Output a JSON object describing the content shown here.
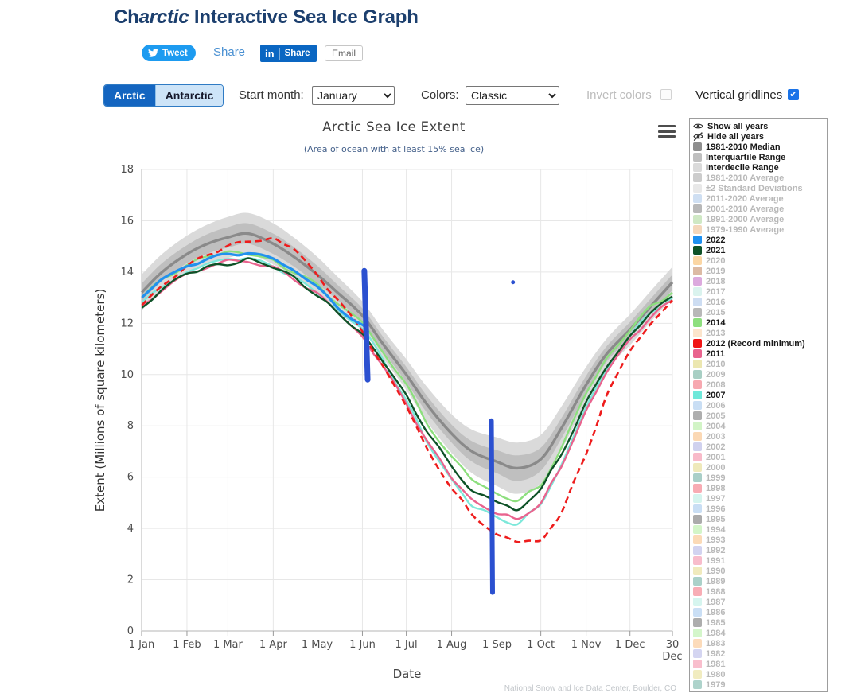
{
  "header": {
    "title_prefix": "Ch",
    "title_italic": "arctic",
    "title_rest": " Interactive Sea Ice Graph"
  },
  "social": {
    "tweet_label": "Tweet",
    "share_label": "Share",
    "linkedin_icon": "in",
    "linkedin_label": "Share",
    "email_label": "Email"
  },
  "controls": {
    "arctic_tab": "Arctic",
    "antarctic_tab": "Antarctic",
    "start_month_label": "Start month:",
    "start_month_value": "January",
    "colors_label": "Colors:",
    "colors_value": "Classic",
    "invert_colors_label": "Invert colors",
    "invert_colors_checked": false,
    "invert_colors_enabled": false,
    "vertical_gridlines_label": "Vertical gridlines",
    "vertical_gridlines_checked": true,
    "checkbox_check_glyph": "✔"
  },
  "legend": {
    "show_all_label": "Show all years",
    "hide_all_label": "Hide all years",
    "items": [
      {
        "label": "1981-2010 Median",
        "color": "#8e8e8e",
        "active": true
      },
      {
        "label": "Interquartile Range",
        "color": "#bfbfbf",
        "active": true
      },
      {
        "label": "Interdecile Range",
        "color": "#dadada",
        "active": true
      },
      {
        "label": "1981-2010 Average",
        "color": "#cccccc",
        "active": false
      },
      {
        "label": "±2 Standard Deviations",
        "color": "#e8e8e8",
        "active": false
      },
      {
        "label": "2011-2020 Average",
        "color": "#cfdff2",
        "active": false
      },
      {
        "label": "2001-2010 Average",
        "color": "#b8b8b8",
        "active": false
      },
      {
        "label": "1991-2000 Average",
        "color": "#cfe8c4",
        "active": false
      },
      {
        "label": "1979-1990 Average",
        "color": "#f4d7bb",
        "active": false
      },
      {
        "label": "2022",
        "color": "#1e90f0",
        "active": true
      },
      {
        "label": "2021",
        "color": "#0e5227",
        "active": true
      },
      {
        "label": "2020",
        "color": "#fbd6a4",
        "active": false
      },
      {
        "label": "2019",
        "color": "#dcbaa4",
        "active": false
      },
      {
        "label": "2018",
        "color": "#dcaade",
        "active": false
      },
      {
        "label": "2017",
        "color": "#daf3ee",
        "active": false
      },
      {
        "label": "2016",
        "color": "#cdddf2",
        "active": false
      },
      {
        "label": "2015",
        "color": "#b8b8b8",
        "active": false
      },
      {
        "label": "2014",
        "color": "#8ddf7e",
        "active": true
      },
      {
        "label": "2013",
        "color": "#fce5cc",
        "active": false
      },
      {
        "label": "2012 (Record minimum)",
        "color": "#f01414",
        "active": true
      },
      {
        "label": "2011",
        "color": "#e9638e",
        "active": true
      },
      {
        "label": "2010",
        "color": "#ece7b0",
        "active": false
      },
      {
        "label": "2009",
        "color": "#a8cfc4",
        "active": false
      },
      {
        "label": "2008",
        "color": "#f7a8b0",
        "active": false
      },
      {
        "label": "2007",
        "color": "#6fe8da",
        "active": true
      },
      {
        "label": "2006",
        "color": "#c9def4",
        "active": false
      },
      {
        "label": "2005",
        "color": "#aeaeae",
        "active": false
      },
      {
        "label": "2004",
        "color": "#d2f4c6",
        "active": false
      },
      {
        "label": "2003",
        "color": "#fbd8b4",
        "active": false
      },
      {
        "label": "2002",
        "color": "#d0d1ee",
        "active": false
      },
      {
        "label": "2001",
        "color": "#f8bac9",
        "active": false
      },
      {
        "label": "2000",
        "color": "#efe9ba",
        "active": false
      },
      {
        "label": "1999",
        "color": "#aacfc8",
        "active": false
      },
      {
        "label": "1998",
        "color": "#f8abb3",
        "active": false
      },
      {
        "label": "1997",
        "color": "#d5f4ee",
        "active": false
      },
      {
        "label": "1996",
        "color": "#c9def4",
        "active": false
      },
      {
        "label": "1995",
        "color": "#ababab",
        "active": false
      },
      {
        "label": "1994",
        "color": "#d3f5c8",
        "active": false
      },
      {
        "label": "1993",
        "color": "#fbdab7",
        "active": false
      },
      {
        "label": "1992",
        "color": "#d2d3f0",
        "active": false
      },
      {
        "label": "1991",
        "color": "#f8bccb",
        "active": false
      },
      {
        "label": "1990",
        "color": "#f0eabd",
        "active": false
      },
      {
        "label": "1989",
        "color": "#abd1c9",
        "active": false
      },
      {
        "label": "1988",
        "color": "#f8adb5",
        "active": false
      },
      {
        "label": "1987",
        "color": "#d6f5ef",
        "active": false
      },
      {
        "label": "1986",
        "color": "#cadff5",
        "active": false
      },
      {
        "label": "1985",
        "color": "#adadad",
        "active": false
      },
      {
        "label": "1984",
        "color": "#d4f6ca",
        "active": false
      },
      {
        "label": "1983",
        "color": "#fcdbba",
        "active": false
      },
      {
        "label": "1982",
        "color": "#d4d5f1",
        "active": false
      },
      {
        "label": "1981",
        "color": "#f9becd",
        "active": false
      },
      {
        "label": "1980",
        "color": "#f1ecc0",
        "active": false
      },
      {
        "label": "1979",
        "color": "#aed3cb",
        "active": false
      }
    ]
  },
  "chart_data": {
    "type": "line",
    "title": "Arctic Sea Ice Extent",
    "subtitle": "(Area of ocean with at least 15% sea ice)",
    "xlabel": "Date",
    "ylabel": "Extent (Millions of square kilometers)",
    "credit": "National Snow and Ice Data Center, Boulder, CO",
    "ylim": [
      0,
      18
    ],
    "yticks": [
      0,
      2,
      4,
      6,
      8,
      10,
      12,
      14,
      16,
      18
    ],
    "xticks": [
      {
        "day": 1,
        "label": "1 Jan"
      },
      {
        "day": 32,
        "label": "1 Feb"
      },
      {
        "day": 60,
        "label": "1 Mar"
      },
      {
        "day": 91,
        "label": "1 Apr"
      },
      {
        "day": 121,
        "label": "1 May"
      },
      {
        "day": 152,
        "label": "1 Jun"
      },
      {
        "day": 182,
        "label": "1 Jul"
      },
      {
        "day": 213,
        "label": "1 Aug"
      },
      {
        "day": 244,
        "label": "1 Sep"
      },
      {
        "day": 274,
        "label": "1 Oct"
      },
      {
        "day": 305,
        "label": "1 Nov"
      },
      {
        "day": 335,
        "label": "1 Dec"
      },
      {
        "day": 364,
        "label": "30 Dec"
      }
    ],
    "grid": {
      "vertical": true,
      "horizontal": true
    },
    "sample_days": [
      1,
      15,
      32,
      46,
      60,
      74,
      91,
      105,
      121,
      135,
      152,
      166,
      182,
      196,
      213,
      227,
      244,
      258,
      274,
      288,
      305,
      319,
      335,
      349,
      364
    ],
    "median": {
      "name": "1981-2010 Median",
      "color": "#8a8a8a",
      "width": 3.4,
      "values": [
        13.2,
        14.0,
        14.7,
        15.1,
        15.35,
        15.5,
        15.1,
        14.6,
        13.9,
        13.2,
        12.3,
        11.2,
        10.0,
        8.85,
        7.7,
        7.0,
        6.6,
        6.35,
        6.7,
        7.9,
        9.6,
        10.8,
        11.75,
        12.65,
        13.6
      ]
    },
    "bands": {
      "interdecile": {
        "name": "Interdecile Range",
        "color": "#dadada",
        "half_width": [
          0.7,
          0.7,
          0.72,
          0.75,
          0.8,
          0.8,
          0.8,
          0.75,
          0.7,
          0.62,
          0.55,
          0.55,
          0.6,
          0.68,
          0.75,
          0.85,
          0.95,
          1.0,
          0.95,
          0.85,
          0.7,
          0.6,
          0.6,
          0.6,
          0.6
        ]
      },
      "interquartile": {
        "name": "Interquartile Range",
        "color": "#bfbfbf",
        "half_width": [
          0.35,
          0.35,
          0.35,
          0.38,
          0.4,
          0.4,
          0.4,
          0.38,
          0.35,
          0.3,
          0.28,
          0.28,
          0.3,
          0.33,
          0.35,
          0.4,
          0.45,
          0.5,
          0.45,
          0.4,
          0.35,
          0.3,
          0.3,
          0.3,
          0.3
        ]
      }
    },
    "series": [
      {
        "name": "2007",
        "color": "#7de8da",
        "width": 2.4,
        "dash": null,
        "values": [
          12.8,
          13.4,
          14.0,
          14.3,
          14.55,
          14.5,
          14.25,
          13.8,
          13.2,
          12.5,
          11.8,
          10.6,
          9.0,
          7.4,
          5.9,
          4.9,
          4.4,
          4.2,
          4.9,
          6.5,
          8.7,
          10.2,
          11.5,
          12.4,
          13.0
        ]
      },
      {
        "name": "2011",
        "color": "#e9638e",
        "width": 2.4,
        "dash": null,
        "values": [
          12.7,
          13.3,
          13.9,
          14.2,
          14.45,
          14.4,
          14.2,
          13.7,
          13.2,
          12.4,
          11.5,
          10.3,
          8.9,
          7.4,
          6.0,
          5.1,
          4.6,
          4.35,
          5.0,
          6.4,
          8.6,
          10.1,
          11.35,
          12.25,
          12.9
        ]
      },
      {
        "name": "2014",
        "color": "#8ddf7e",
        "width": 2.4,
        "dash": null,
        "values": [
          13.0,
          13.7,
          14.3,
          14.6,
          14.8,
          14.7,
          14.45,
          14.0,
          13.5,
          12.8,
          12.0,
          10.9,
          9.6,
          8.1,
          6.8,
          5.9,
          5.35,
          5.05,
          5.7,
          7.1,
          9.3,
          10.6,
          11.75,
          12.65,
          13.2
        ]
      },
      {
        "name": "2021",
        "color": "#0e5227",
        "width": 2.4,
        "dash": null,
        "values": [
          12.6,
          13.3,
          13.95,
          14.2,
          14.3,
          14.5,
          14.2,
          13.8,
          13.1,
          12.4,
          11.6,
          10.5,
          9.2,
          7.8,
          6.4,
          5.5,
          5.0,
          4.75,
          5.5,
          6.9,
          8.9,
          10.3,
          11.5,
          12.4,
          13.05
        ]
      },
      {
        "name": "2012 (Record minimum)",
        "color": "#ee1c1c",
        "width": 2.6,
        "dash": "8,5",
        "values": [
          12.7,
          13.5,
          14.2,
          14.7,
          15.0,
          15.2,
          15.3,
          14.9,
          13.9,
          12.9,
          11.7,
          10.3,
          8.8,
          7.1,
          5.6,
          4.5,
          3.8,
          3.45,
          3.55,
          4.6,
          6.9,
          9.2,
          10.9,
          12.0,
          12.9
        ]
      },
      {
        "name": "2022",
        "color": "#2191ee",
        "width": 3.2,
        "dash": null,
        "days": [
          1,
          15,
          32,
          46,
          60,
          74,
          91,
          105,
          121,
          135,
          152,
          156
        ],
        "values": [
          13.0,
          13.7,
          14.25,
          14.5,
          14.7,
          14.75,
          14.5,
          14.1,
          13.4,
          12.65,
          11.9,
          11.65
        ]
      }
    ],
    "annotations": {
      "color": "#2b50d0",
      "strokes": [
        {
          "day1": 153.3,
          "value1": 14.05,
          "day2": 155.6,
          "value2": 9.8,
          "width": 7
        },
        {
          "day1": 240.2,
          "value1": 8.2,
          "day2": 241.0,
          "value2": 1.5,
          "width": 6
        }
      ],
      "point": {
        "day": 255,
        "value": 13.6,
        "radius": 2.5
      }
    }
  }
}
